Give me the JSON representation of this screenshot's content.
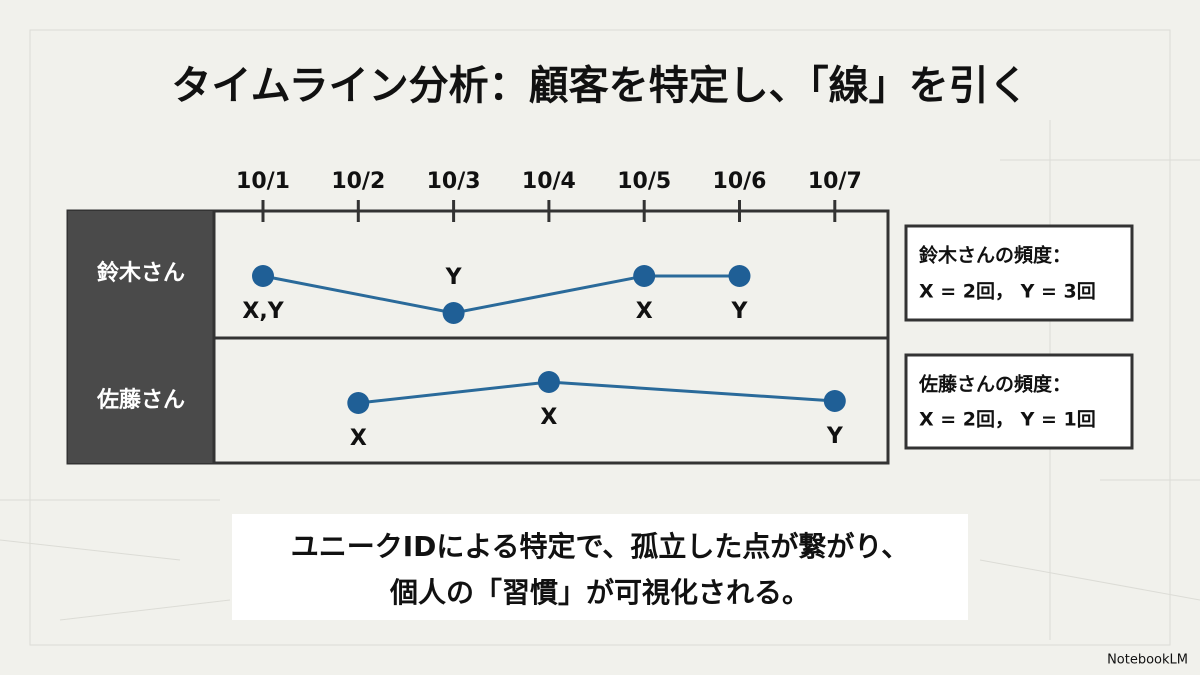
{
  "title": "タイムライン分析：顧客を特定し、「線」を引く",
  "timeline": {
    "dates": [
      "10/1",
      "10/2",
      "10/3",
      "10/4",
      "10/5",
      "10/6",
      "10/7"
    ],
    "rows": [
      {
        "name": "鈴木さん",
        "points": [
          {
            "date": "10/1",
            "label": "X,Y"
          },
          {
            "date": "10/3",
            "label": "Y"
          },
          {
            "date": "10/5",
            "label": "X"
          },
          {
            "date": "10/6",
            "label": "Y"
          }
        ]
      },
      {
        "name": "佐藤さん",
        "points": [
          {
            "date": "10/2",
            "label": "X"
          },
          {
            "date": "10/4",
            "label": "X"
          },
          {
            "date": "10/7",
            "label": "Y"
          }
        ]
      }
    ]
  },
  "summaries": [
    {
      "heading": "鈴木さんの頻度：",
      "text": "X = 2回， Y = 3回"
    },
    {
      "heading": "佐藤さんの頻度：",
      "text": "X = 2回， Y = 1回"
    }
  ],
  "caption": [
    "ユニークIDによる特定で、孤立した点が繋がり、",
    "個人の「習慣」が可視化される。"
  ],
  "footer": "NotebookLM"
}
